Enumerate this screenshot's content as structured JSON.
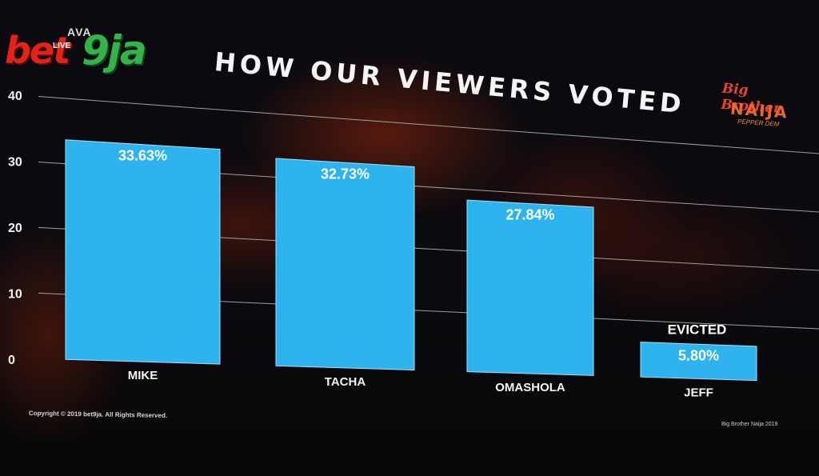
{
  "header": {
    "title": "HOW OUR VIEWERS VOTED"
  },
  "logos": {
    "left": {
      "part1": "bet",
      "part2": "9ja",
      "live": "LIVE",
      "sponsor": "AVA"
    },
    "right": {
      "line1": "Big Brother",
      "line2": "NAIJA",
      "line3": "PEPPER DEM"
    }
  },
  "footer": {
    "copyright": "Copyright © 2019 bet9ja. All Rights Reserved.",
    "right_note": "Big Brother Naija 2019"
  },
  "colors": {
    "bar": "#2fb3ef",
    "grid": "#b7b7b7",
    "text": "#f4f4f4"
  },
  "chart_data": {
    "type": "bar",
    "title": "HOW OUR VIEWERS VOTED",
    "categories": [
      "MIKE",
      "TACHA",
      "OMASHOLA",
      "JEFF"
    ],
    "values": [
      33.63,
      32.73,
      27.84,
      5.8
    ],
    "data_labels": [
      "33.63%",
      "32.73%",
      "27.84%",
      "5.80%"
    ],
    "annotations": [
      {
        "category": "JEFF",
        "text": "EVICTED"
      }
    ],
    "y_ticks": [
      0,
      10,
      20,
      30,
      40
    ],
    "ylim": [
      0,
      40
    ],
    "xlabel": "",
    "ylabel": "",
    "grid": true,
    "legend": false
  }
}
